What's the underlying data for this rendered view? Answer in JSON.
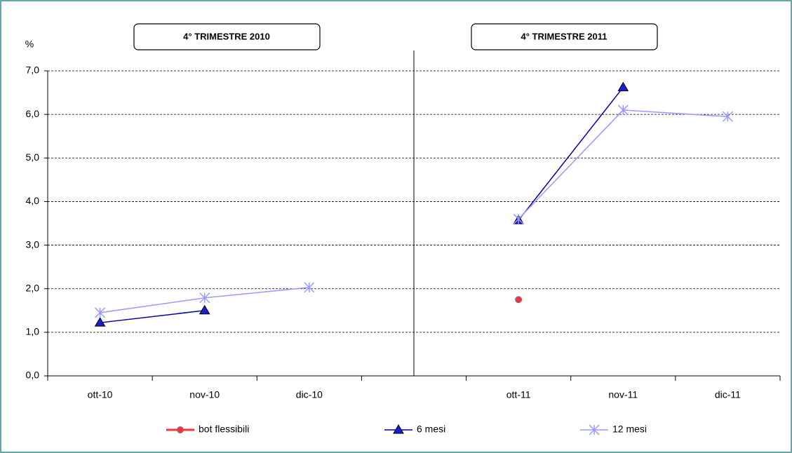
{
  "chart_data": {
    "type": "line",
    "headers": [
      "4° TRIMESTRE  2010",
      "4° TRIMESTRE  2011"
    ],
    "y_label": "%",
    "categories": [
      "ott-10",
      "nov-10",
      "dic-10",
      null,
      "ott-11",
      "nov-11",
      "dic-11"
    ],
    "series": [
      {
        "name": "bot flessibili",
        "color": "#ff3333",
        "marker": "circle",
        "values": [
          null,
          null,
          null,
          null,
          1.75,
          null,
          null
        ]
      },
      {
        "name": "6   mesi",
        "color": "#0000aa",
        "marker": "triangle",
        "values": [
          1.22,
          1.5,
          null,
          null,
          3.57,
          6.62,
          null
        ]
      },
      {
        "name": "12 mesi",
        "color": "#9999ff",
        "marker": "star",
        "values": [
          1.45,
          1.79,
          2.03,
          null,
          3.6,
          6.1,
          5.95
        ]
      }
    ],
    "ylim": [
      0,
      7
    ],
    "yticks": [
      {
        "value": 0,
        "label": "0,0"
      },
      {
        "value": 1,
        "label": "1,0"
      },
      {
        "value": 2,
        "label": "2,0"
      },
      {
        "value": 3,
        "label": "3,0"
      },
      {
        "value": 4,
        "label": "4,0"
      },
      {
        "value": 5,
        "label": "5,0"
      },
      {
        "value": 6,
        "label": "6,0"
      },
      {
        "value": 7,
        "label": "7,0"
      }
    ],
    "grid": true,
    "legend": "bottom"
  }
}
